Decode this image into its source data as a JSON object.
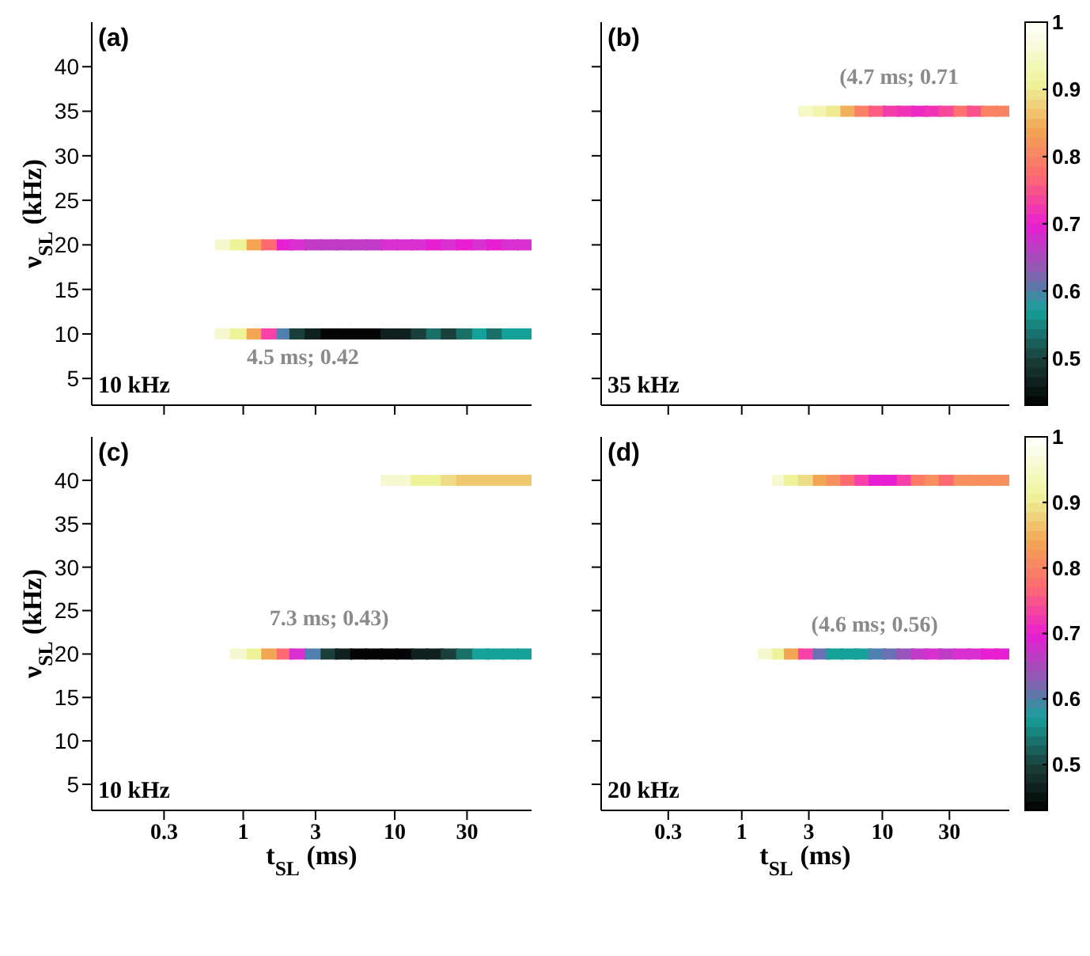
{
  "chart_data": [
    {
      "type": "scatter",
      "title": "(a)",
      "ylabel": "ν$_{SL}$ (kHz)",
      "xlim": [
        0.1,
        80
      ],
      "xticks": [
        0.3,
        1,
        3,
        10,
        30
      ],
      "ylim": [
        2,
        45
      ],
      "yticks": [
        5,
        10,
        15,
        20,
        25,
        30,
        35,
        40
      ],
      "log": "x",
      "tick_labels": "y",
      "marker": "square",
      "grid": false,
      "legend": false,
      "annotations": [
        "10 kHz",
        "4.5 ms; 0.42"
      ],
      "series": [
        {
          "x": [
            0.74,
            0.93,
            1.2,
            1.5,
            1.9,
            2.3,
            2.9,
            3.7,
            4.6,
            5.8,
            7.3,
            9.2,
            11.6,
            14.6,
            18.4,
            23,
            29,
            37,
            46,
            58,
            73
          ],
          "values": [
            10,
            10,
            10,
            10,
            10,
            10,
            10,
            10,
            10,
            10,
            10,
            10,
            10,
            10,
            10,
            10,
            10,
            10,
            10,
            10,
            10
          ],
          "colors": [
            "#f6f9d0",
            "#eef39a",
            "#f2a552",
            "#f840a8",
            "#5080b0",
            "#1b3f3a",
            "#10201e",
            "#050505",
            "#050505",
            "#050505",
            "#050505",
            "#10201e",
            "#10201e",
            "#1b3f3a",
            "#187068",
            "#1b3f3a",
            "#187068",
            "#16a09a",
            "#187068",
            "#16a09a",
            "#16a09a"
          ]
        },
        {
          "x": [
            0.74,
            0.93,
            1.2,
            1.5,
            1.9,
            2.3,
            2.9,
            3.7,
            4.6,
            5.8,
            7.3,
            9.2,
            11.6,
            14.6,
            18.4,
            23,
            29,
            37,
            46,
            58,
            73
          ],
          "values": [
            20,
            20,
            20,
            20,
            20,
            20,
            20,
            20,
            20,
            20,
            20,
            20,
            20,
            20,
            20,
            20,
            20,
            20,
            20,
            20,
            20
          ],
          "colors": [
            "#f6f9d0",
            "#eef39a",
            "#f2a552",
            "#ff6a70",
            "#e81ed2",
            "#d830d0",
            "#c03ac8",
            "#c03ac8",
            "#c03ac8",
            "#c03ac8",
            "#c03ac8",
            "#d830d0",
            "#d830d0",
            "#d830d0",
            "#e81ed2",
            "#d830d0",
            "#e81ed2",
            "#d830d0",
            "#e81ed2",
            "#d830d0",
            "#d830d0"
          ]
        }
      ]
    },
    {
      "type": "scatter",
      "title": "(b)",
      "xlim": [
        0.1,
        80
      ],
      "xticks": [
        0.3,
        1,
        3,
        10,
        30
      ],
      "ylim": [
        2,
        45
      ],
      "yticks": [
        5,
        10,
        15,
        20,
        25,
        30,
        35,
        40
      ],
      "log": "x",
      "tick_labels": false,
      "clim": [
        0.43,
        1
      ],
      "cticks": [
        0.5,
        0.6,
        0.7,
        0.8,
        0.9,
        1
      ],
      "marker": "square",
      "grid": false,
      "legend": false,
      "annotations": [
        "35 kHz",
        "(4.7 ms; 0.71"
      ],
      "series": [
        {
          "x": [
            2.9,
            3.7,
            4.6,
            5.8,
            7.3,
            9.2,
            11.6,
            14.6,
            18.4,
            23,
            29,
            37,
            46,
            58,
            73
          ],
          "values": [
            35,
            35,
            35,
            35,
            35,
            35,
            35,
            35,
            35,
            35,
            35,
            35,
            35,
            35,
            35
          ],
          "cvalues": [
            0.95,
            0.93,
            0.9,
            0.85,
            0.8,
            0.76,
            0.73,
            0.72,
            0.71,
            0.72,
            0.74,
            0.78,
            0.75,
            0.8,
            0.8
          ]
        }
      ]
    },
    {
      "type": "scatter",
      "title": "(c)",
      "xlabel": "t$_{SL}$ (ms)",
      "ylabel": "ν$_{SL}$ (kHz)",
      "xlim": [
        0.1,
        80
      ],
      "xticks": [
        0.3,
        1,
        3,
        10,
        30
      ],
      "ylim": [
        2,
        45
      ],
      "yticks": [
        5,
        10,
        15,
        20,
        25,
        30,
        35,
        40
      ],
      "log": "x",
      "marker": "square",
      "grid": false,
      "legend": false,
      "annotations": [
        "10 kHz",
        "7.3 ms; 0.43)"
      ],
      "series": [
        {
          "x": [
            9.2,
            11.6,
            14.6,
            18.4,
            23,
            29,
            37,
            46,
            58,
            73
          ],
          "values": [
            40,
            40,
            40,
            40,
            40,
            40,
            40,
            40,
            40,
            40
          ],
          "colors": [
            "#f6f9d0",
            "#f6f9d0",
            "#eef39a",
            "#eef39a",
            "#eedc86",
            "#f0c870",
            "#f0c870",
            "#f0c870",
            "#f0c870",
            "#f0c870"
          ]
        },
        {
          "x": [
            0.93,
            1.2,
            1.5,
            1.9,
            2.3,
            2.9,
            3.7,
            4.6,
            5.8,
            7.3,
            9.2,
            11.6,
            14.6,
            18.4,
            23,
            29,
            37,
            46,
            58,
            73
          ],
          "values": [
            20,
            20,
            20,
            20,
            20,
            20,
            20,
            20,
            20,
            20,
            20,
            20,
            20,
            20,
            20,
            20,
            20,
            20,
            20,
            20
          ],
          "colors": [
            "#f6f9d0",
            "#eef39a",
            "#f2a552",
            "#ff6a70",
            "#d830d0",
            "#5080b0",
            "#1b3f3a",
            "#10201e",
            "#050505",
            "#050505",
            "#050505",
            "#050505",
            "#10201e",
            "#10201e",
            "#1b3f3a",
            "#187068",
            "#16a09a",
            "#16a09a",
            "#16a09a",
            "#16a09a"
          ]
        }
      ]
    },
    {
      "type": "scatter",
      "title": "(d)",
      "xlabel": "t$_{SL}$ (ms)",
      "xlim": [
        0.1,
        80
      ],
      "xticks": [
        0.3,
        1,
        3,
        10,
        30
      ],
      "ylim": [
        2,
        45
      ],
      "yticks": [
        5,
        10,
        15,
        20,
        25,
        30,
        35,
        40
      ],
      "log": "x",
      "tick_labels": "x",
      "clim": [
        0.43,
        1
      ],
      "cticks": [
        0.5,
        0.6,
        0.7,
        0.8,
        0.9,
        1
      ],
      "marker": "square",
      "grid": false,
      "legend": false,
      "annotations": [
        "20 kHz",
        "(4.6 ms; 0.56)"
      ],
      "series": [
        {
          "x": [
            1.9,
            2.3,
            2.9,
            3.7,
            4.6,
            5.8,
            7.3,
            9.2,
            11.6,
            14.6,
            18.4,
            23,
            29,
            37,
            46,
            58,
            73
          ],
          "values": [
            40,
            40,
            40,
            40,
            40,
            40,
            40,
            40,
            40,
            40,
            40,
            40,
            40,
            40,
            40,
            40,
            40
          ],
          "colors": [
            "#f6f9d0",
            "#eef39a",
            "#eedc86",
            "#f2a552",
            "#f7905e",
            "#ff6a70",
            "#f840a8",
            "#e81ed2",
            "#e81ed2",
            "#f840a8",
            "#ff7a66",
            "#f7905e",
            "#ff6a70",
            "#f7905e",
            "#f7905e",
            "#f7905e",
            "#f7905e"
          ]
        },
        {
          "x": [
            1.5,
            1.9,
            2.3,
            2.9,
            3.7,
            4.6,
            5.8,
            7.3,
            9.2,
            11.6,
            14.6,
            18.4,
            23,
            29,
            37,
            46,
            58,
            73
          ],
          "values": [
            20,
            20,
            20,
            20,
            20,
            20,
            20,
            20,
            20,
            20,
            20,
            20,
            20,
            20,
            20,
            20,
            20,
            20
          ],
          "colors": [
            "#f6f9d0",
            "#eef39a",
            "#f2a552",
            "#f840a8",
            "#6a70b4",
            "#16a09a",
            "#16a09a",
            "#16a09a",
            "#5080b0",
            "#6a70b4",
            "#9a55bc",
            "#c03ac8",
            "#d830d0",
            "#c03ac8",
            "#d830d0",
            "#d830d0",
            "#e81ed2",
            "#e81ed2"
          ]
        }
      ]
    }
  ]
}
